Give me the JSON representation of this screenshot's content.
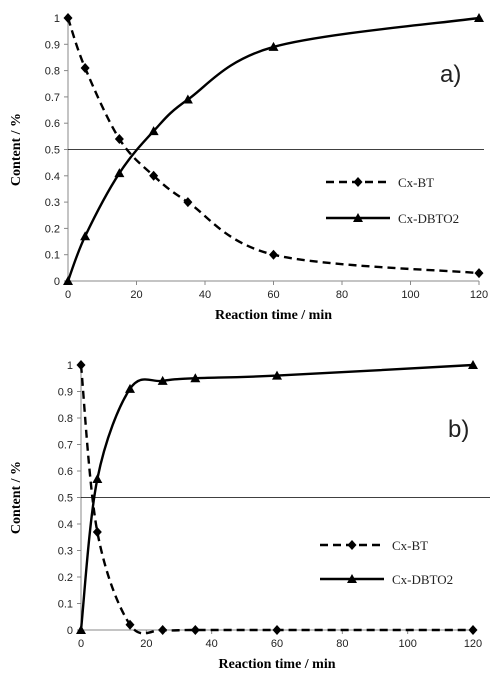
{
  "chart_data": [
    {
      "type": "line",
      "panel_label": "a)",
      "xlabel": "Reaction time  / min",
      "ylabel": "Content  / %",
      "xlim": [
        0,
        120
      ],
      "ylim": [
        0,
        1
      ],
      "x_ticks": [
        0,
        20,
        40,
        60,
        80,
        100,
        120
      ],
      "y_ticks": [
        0,
        0.1,
        0.2,
        0.3,
        0.4,
        0.5,
        0.6,
        0.7,
        0.8,
        0.9,
        1
      ],
      "x_tick_labels": [
        "0",
        "20",
        "40",
        "60",
        "80",
        "100",
        "120"
      ],
      "y_tick_labels": [
        "0",
        "0.1",
        "0.2",
        "0.3",
        "0.4",
        "0.5",
        "0.6",
        "0.7",
        "0.8",
        "0.9",
        "1"
      ],
      "reference_line_y": 0.5,
      "legend_position": "right",
      "series": [
        {
          "name": "Cx-BT",
          "style": "dashed",
          "marker": "diamond",
          "x": [
            0,
            5,
            15,
            25,
            35,
            60,
            120
          ],
          "y": [
            1.0,
            0.81,
            0.54,
            0.4,
            0.3,
            0.1,
            0.03
          ]
        },
        {
          "name": "Cx-DBTO2",
          "style": "solid",
          "marker": "triangle",
          "x": [
            0,
            5,
            15,
            25,
            35,
            60,
            120
          ],
          "y": [
            0,
            0.17,
            0.41,
            0.57,
            0.69,
            0.89,
            1.0
          ]
        }
      ]
    },
    {
      "type": "line",
      "panel_label": "b)",
      "xlabel": "Reaction time  / min",
      "ylabel": "Content  / %",
      "xlim": [
        0,
        120
      ],
      "ylim": [
        0,
        1
      ],
      "x_ticks": [
        0,
        20,
        40,
        60,
        80,
        100,
        120
      ],
      "y_ticks": [
        0,
        0.1,
        0.2,
        0.3,
        0.4,
        0.5,
        0.6,
        0.7,
        0.8,
        0.9,
        1
      ],
      "x_tick_labels": [
        "0",
        "20",
        "40",
        "60",
        "80",
        "100",
        "120"
      ],
      "y_tick_labels": [
        "0",
        "0.1",
        "0.2",
        "0.3",
        "0.4",
        "0.5",
        "0.6",
        "0.7",
        "0.8",
        "0.9",
        "1"
      ],
      "reference_line_y": 0.5,
      "legend_position": "right",
      "series": [
        {
          "name": "Cx-BT",
          "style": "dashed",
          "marker": "diamond",
          "x": [
            0,
            5,
            15,
            25,
            35,
            60,
            120
          ],
          "y": [
            1.0,
            0.37,
            0.02,
            0.0,
            0.0,
            0.0,
            0.0
          ]
        },
        {
          "name": "Cx-DBTO2",
          "style": "solid",
          "marker": "triangle",
          "x": [
            0,
            5,
            15,
            25,
            35,
            60,
            120
          ],
          "y": [
            0,
            0.57,
            0.91,
            0.94,
            0.95,
            0.96,
            1.0
          ]
        }
      ]
    }
  ]
}
